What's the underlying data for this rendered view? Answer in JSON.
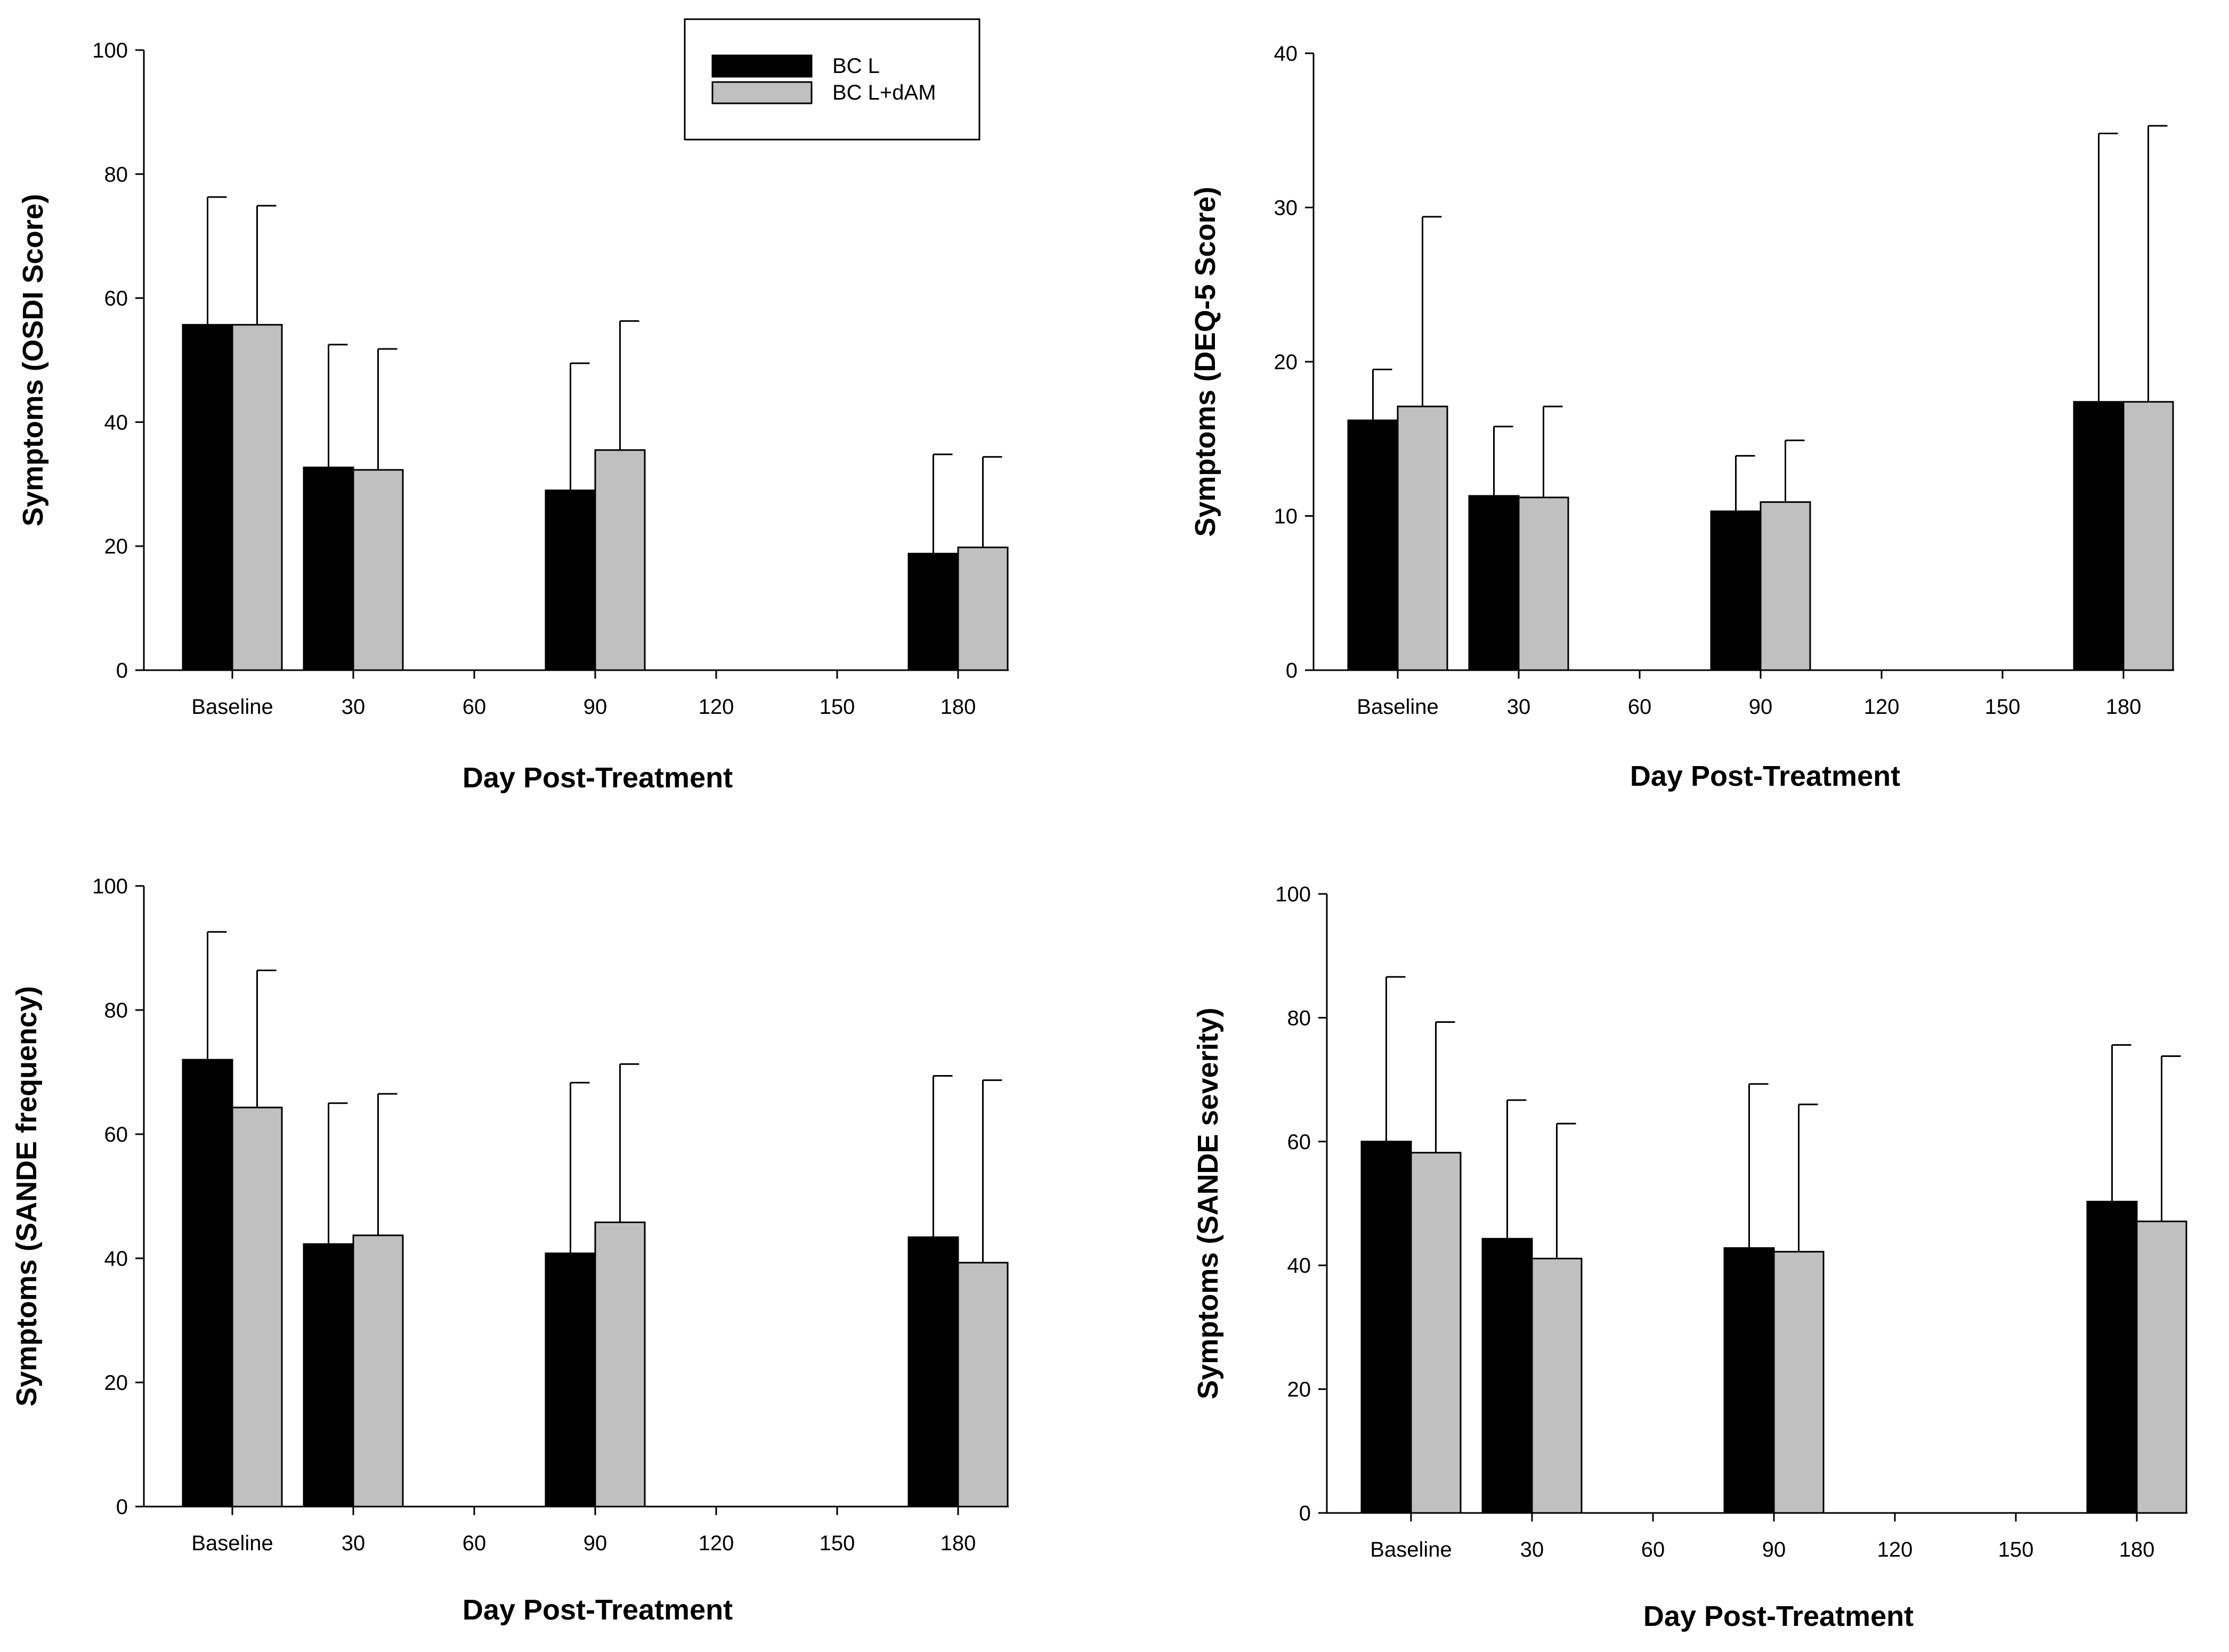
{
  "legend": {
    "items": [
      {
        "label": "BC L",
        "color": "#000000"
      },
      {
        "label": "BC L+dAM",
        "color": "#c0c0c0"
      }
    ]
  },
  "chart_data": [
    {
      "type": "bar",
      "xlabel": "Day Post-Treatment",
      "ylabel": "Symptoms (OSDI Score)",
      "categories": [
        "Baseline",
        "30",
        "60",
        "90",
        "120",
        "150",
        "180"
      ],
      "ylim": [
        0,
        100
      ],
      "yticks": [
        0,
        20,
        40,
        60,
        80,
        100
      ],
      "series": [
        {
          "name": "BC L",
          "color": "#000000",
          "values": [
            55.7,
            32.7,
            null,
            29.0,
            null,
            null,
            18.8
          ],
          "error": [
            20.6,
            19.8,
            null,
            20.5,
            null,
            null,
            16.0
          ]
        },
        {
          "name": "BC L+dAM",
          "color": "#c0c0c0",
          "values": [
            55.7,
            32.3,
            null,
            35.5,
            null,
            null,
            19.8
          ],
          "error": [
            19.2,
            19.5,
            null,
            20.8,
            null,
            null,
            14.6
          ]
        }
      ]
    },
    {
      "type": "bar",
      "xlabel": "Day Post-Treatment",
      "ylabel": "Symptoms (DEQ-5 Score)",
      "categories": [
        "Baseline",
        "30",
        "60",
        "90",
        "120",
        "150",
        "180"
      ],
      "ylim": [
        0,
        40
      ],
      "yticks": [
        0,
        10,
        20,
        30,
        40
      ],
      "series": [
        {
          "name": "BC L",
          "color": "#000000",
          "values": [
            16.2,
            11.3,
            null,
            10.3,
            null,
            null,
            17.4
          ],
          "error": [
            3.3,
            4.5,
            null,
            3.6,
            null,
            null,
            17.4
          ]
        },
        {
          "name": "BC L+dAM",
          "color": "#c0c0c0",
          "values": [
            17.1,
            11.2,
            null,
            10.9,
            null,
            null,
            17.4
          ],
          "error": [
            12.3,
            5.9,
            null,
            4.0,
            null,
            null,
            17.9
          ]
        }
      ]
    },
    {
      "type": "bar",
      "xlabel": "Day Post-Treatment",
      "ylabel": "Symptoms (SANDE frequency)",
      "categories": [
        "Baseline",
        "30",
        "60",
        "90",
        "120",
        "150",
        "180"
      ],
      "ylim": [
        0,
        100
      ],
      "yticks": [
        0,
        20,
        40,
        60,
        80,
        100
      ],
      "series": [
        {
          "name": "BC L",
          "color": "#000000",
          "values": [
            72.0,
            42.3,
            null,
            40.8,
            null,
            null,
            43.4
          ],
          "error": [
            20.6,
            22.7,
            null,
            27.5,
            null,
            null,
            26.0
          ]
        },
        {
          "name": "BC L+dAM",
          "color": "#c0c0c0",
          "values": [
            64.3,
            43.7,
            null,
            45.8,
            null,
            null,
            39.3
          ],
          "error": [
            22.1,
            22.8,
            null,
            25.5,
            null,
            null,
            29.4
          ]
        }
      ]
    },
    {
      "type": "bar",
      "xlabel": "Day Post-Treatment",
      "ylabel": "Symptoms (SANDE severity)",
      "categories": [
        "Baseline",
        "30",
        "60",
        "90",
        "120",
        "150",
        "180"
      ],
      "ylim": [
        0,
        100
      ],
      "yticks": [
        0,
        20,
        40,
        60,
        80,
        100
      ],
      "series": [
        {
          "name": "BC L",
          "color": "#000000",
          "values": [
            60.0,
            44.3,
            null,
            42.8,
            null,
            null,
            50.3
          ],
          "error": [
            26.6,
            22.4,
            null,
            26.5,
            null,
            null,
            25.3
          ]
        },
        {
          "name": "BC L+dAM",
          "color": "#c0c0c0",
          "values": [
            58.2,
            41.1,
            null,
            42.2,
            null,
            null,
            47.1
          ],
          "error": [
            21.1,
            21.8,
            null,
            23.8,
            null,
            null,
            26.7
          ]
        }
      ]
    }
  ]
}
